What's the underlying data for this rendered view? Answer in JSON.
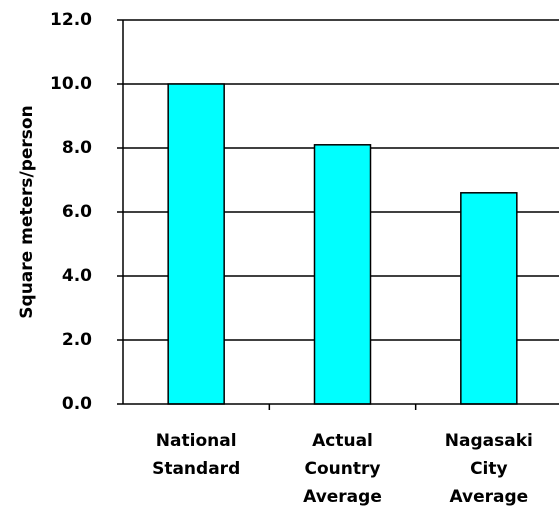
{
  "chart_data": {
    "type": "bar",
    "title": "",
    "xlabel": "",
    "ylabel": "Square meters/person",
    "ylim": [
      0,
      12
    ],
    "yticks": [
      "0.0",
      "2.0",
      "4.0",
      "6.0",
      "8.0",
      "10.0",
      "12.0"
    ],
    "categories": [
      [
        "National",
        "Standard"
      ],
      [
        "Actual",
        "Country",
        "Average"
      ],
      [
        "Nagasaki",
        "City",
        "Average"
      ]
    ],
    "values": [
      10.0,
      8.1,
      6.6
    ],
    "grid": true,
    "legend": "none",
    "colors": {
      "bar_fill": "#00FFFF",
      "bar_stroke": "#000000",
      "gridline": "#000000",
      "axis": "#000000",
      "background": "#FFFFFF"
    }
  }
}
